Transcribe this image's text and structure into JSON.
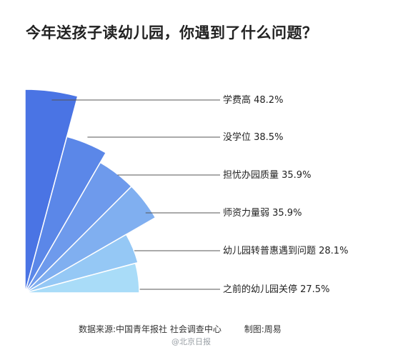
{
  "title": "今年送孩子读幼儿园，你遇到了什么问题？",
  "footer": {
    "source": "数据来源:中国青年报社 社会调查中心",
    "credit": "制图:周易"
  },
  "watermark": "@北京日报",
  "chart_data": {
    "type": "pie",
    "title": "今年送孩子读幼儿园，你遇到了什么问题？",
    "categories": [
      "学费高",
      "没学位",
      "担忧办园质量",
      "师资力量弱",
      "幼儿园转普惠遇到问题",
      "之前的幼儿园关停"
    ],
    "values": [
      48.2,
      38.5,
      35.9,
      35.9,
      28.1,
      27.5
    ],
    "labels": [
      "学费高  48.2%",
      "没学位  38.5%",
      "担忧办园质量  35.9%",
      "师资力量弱  35.9%",
      "幼儿园转普惠遇到问题  28.1%",
      "之前的幼儿园关停  27.5%"
    ],
    "unit": "%",
    "colors": [
      "#4a74e4",
      "#5b87e8",
      "#6e9aec",
      "#80aff0",
      "#95c8f5",
      "#a9dcf8"
    ],
    "legend": "right, leader lines"
  }
}
